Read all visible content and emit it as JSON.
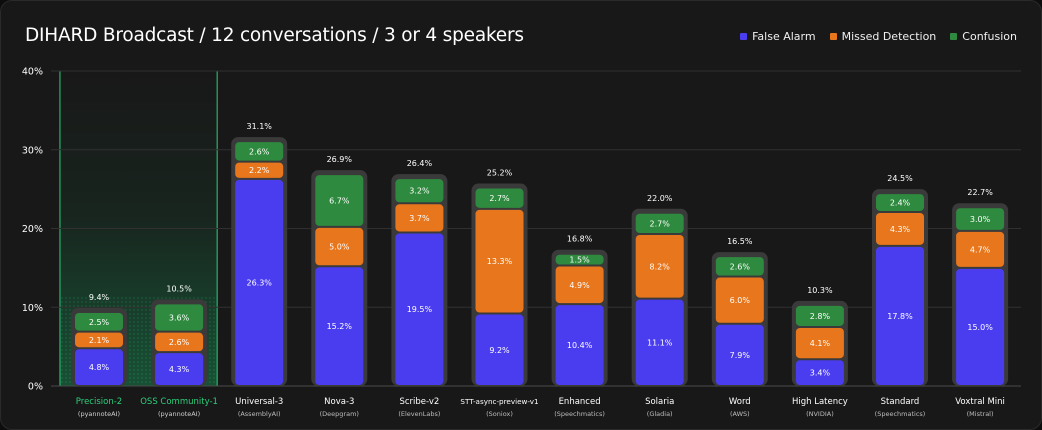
{
  "chart_data": {
    "type": "bar",
    "stacked": true,
    "title": "DIHARD Broadcast / 12 conversations / 3 or 4 speakers",
    "ylim": [
      0,
      40
    ],
    "yticks": [
      "0%",
      "10%",
      "20%",
      "30%",
      "40%"
    ],
    "categories": [
      {
        "name": "Precision-2",
        "provider": "(pyannoteAI)",
        "highlight": true
      },
      {
        "name": "OSS Community-1",
        "provider": "(pyannoteAI)",
        "highlight": true
      },
      {
        "name": "Universal-3",
        "provider": "(AssemblyAI)",
        "highlight": false
      },
      {
        "name": "Nova-3",
        "provider": "(Deepgram)",
        "highlight": false
      },
      {
        "name": "Scribe-v2",
        "provider": "(ElevenLabs)",
        "highlight": false
      },
      {
        "name": "STT-async-preview-v1",
        "provider": "(Soniox)",
        "highlight": false
      },
      {
        "name": "Enhanced",
        "provider": "(Speechmatics)",
        "highlight": false
      },
      {
        "name": "Solaria",
        "provider": "(Gladia)",
        "highlight": false
      },
      {
        "name": "Word",
        "provider": "(AWS)",
        "highlight": false
      },
      {
        "name": "High Latency",
        "provider": "(NVIDIA)",
        "highlight": false
      },
      {
        "name": "Standard",
        "provider": "(Speechmatics)",
        "highlight": false
      },
      {
        "name": "Voxtral Mini",
        "provider": "(Mistral)",
        "highlight": false
      }
    ],
    "series": [
      {
        "name": "False Alarm",
        "color": "#4a3df0",
        "values": [
          4.8,
          4.3,
          26.3,
          15.2,
          19.5,
          9.2,
          10.4,
          11.1,
          7.9,
          3.4,
          17.8,
          15.0
        ]
      },
      {
        "name": "Missed Detection",
        "color": "#e8761c",
        "values": [
          2.1,
          2.6,
          2.2,
          5.0,
          3.7,
          13.3,
          4.9,
          8.2,
          6.0,
          4.1,
          4.3,
          4.7
        ]
      },
      {
        "name": "Confusion",
        "color": "#2e8a3e",
        "values": [
          2.5,
          3.6,
          2.6,
          6.7,
          3.2,
          2.7,
          1.5,
          2.7,
          2.6,
          2.8,
          2.4,
          3.0
        ]
      }
    ],
    "totals": [
      9.4,
      10.5,
      31.1,
      26.9,
      26.4,
      25.2,
      16.8,
      22.0,
      16.5,
      10.3,
      24.5,
      22.7
    ]
  }
}
